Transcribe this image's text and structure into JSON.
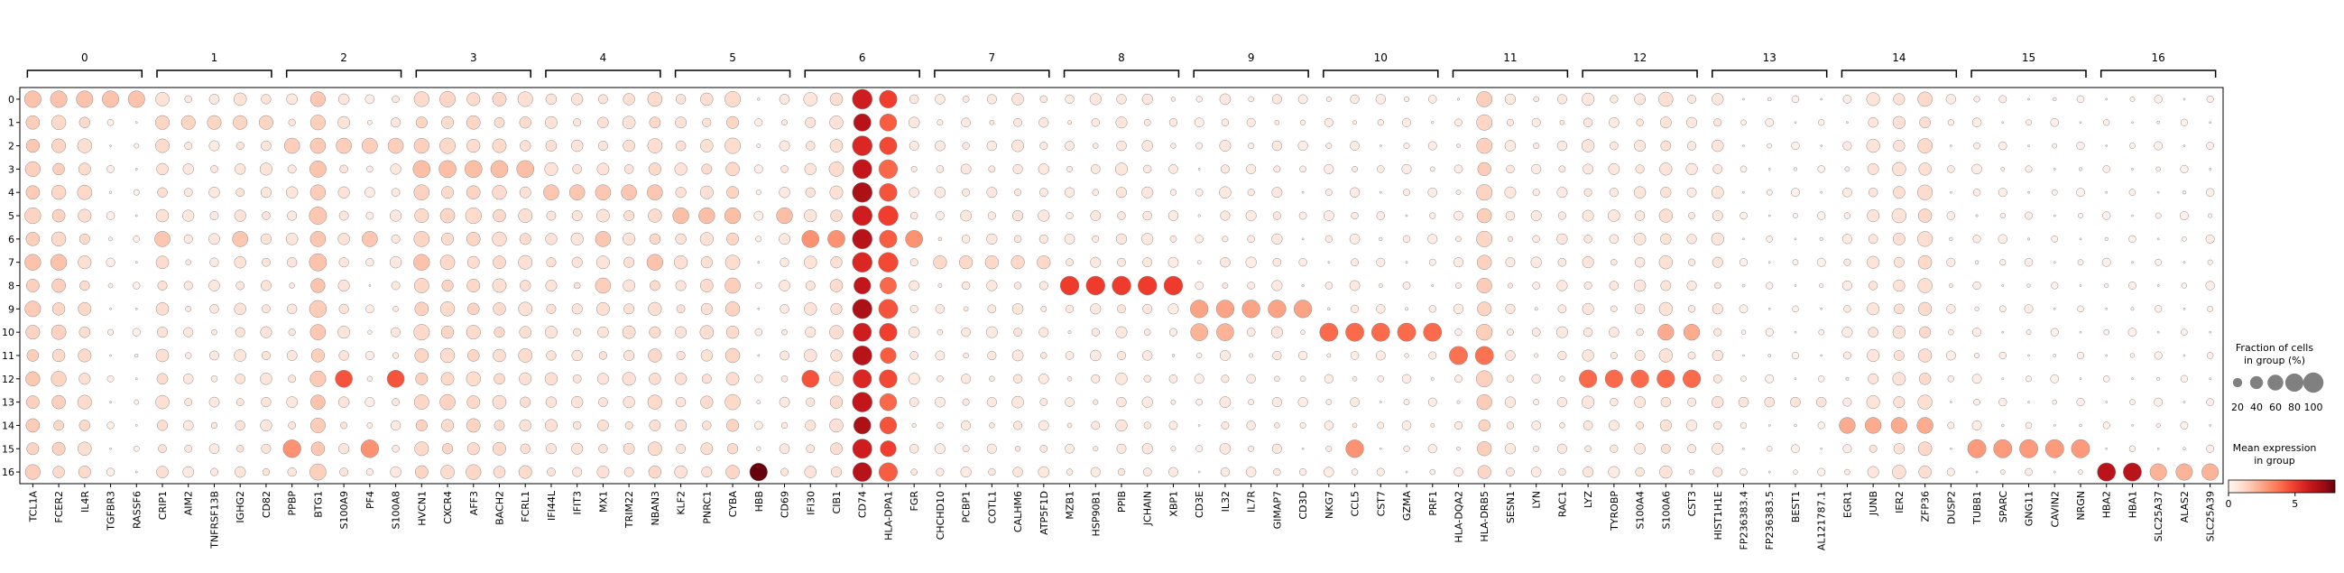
{
  "chart_data": {
    "type": "dotplot",
    "group_labels": [
      "0",
      "1",
      "2",
      "3",
      "4",
      "5",
      "6",
      "7",
      "8",
      "9",
      "10",
      "11",
      "12",
      "13",
      "14",
      "15",
      "16"
    ],
    "rows": [
      "0",
      "1",
      "2",
      "3",
      "4",
      "5",
      "6",
      "7",
      "8",
      "9",
      "10",
      "11",
      "12",
      "13",
      "14",
      "15",
      "16"
    ],
    "genes": [
      "TCL1A",
      "FCER2",
      "IL4R",
      "TGFBR3",
      "RASSF6",
      "CRIP1",
      "AIM2",
      "TNFRSF13B",
      "IGHG2",
      "CD82",
      "PPBP",
      "BTG1",
      "S100A9",
      "PF4",
      "S100A8",
      "HVCN1",
      "CXCR4",
      "AFF3",
      "BACH2",
      "FCRL1",
      "IFI44L",
      "IFIT3",
      "MX1",
      "TRIM22",
      "NBAN3",
      "KLF2",
      "PNRC1",
      "CYBA",
      "HBB",
      "CD69",
      "IFI30",
      "CIB1",
      "CD74",
      "HLA-DPA1",
      "FGR",
      "CHCHD10",
      "PCBP1",
      "COTL1",
      "CALHM6",
      "ATP5F1D",
      "MZB1",
      "HSP90B1",
      "PPIB",
      "JCHAIN",
      "XBP1",
      "CD3E",
      "IL32",
      "IL7R",
      "GIMAP7",
      "CD3D",
      "NKG7",
      "CCL5",
      "CST7",
      "GZMA",
      "PRF1",
      "HLA-DQA2",
      "HLA-DRB5",
      "SESN1",
      "LYN",
      "RAC1",
      "LYZ",
      "TYROBP",
      "S100A4",
      "S100A6",
      "CST3",
      "HIST1H1E",
      "FP236383.4",
      "FP236383.5",
      "BEST1",
      "AL121787.1",
      "EGR1",
      "JUNB",
      "IER2",
      "ZFP36",
      "DUSP2",
      "TUBB1",
      "SPARC",
      "GNG11",
      "CAVIN2",
      "NRGN",
      "HBA2",
      "HBA1",
      "SLC25A37",
      "ALAS2",
      "SLC25A39"
    ],
    "legend_size": {
      "title": "Fraction of cells\nin group (%)",
      "values": [
        20,
        40,
        60,
        80,
        100
      ],
      "labels": [
        "20",
        "40",
        "60",
        "80",
        "100"
      ]
    },
    "legend_color": {
      "title": "Mean expression\nin group",
      "range": [
        0,
        8
      ],
      "ticks": [
        0,
        5
      ],
      "tick_labels": [
        "0",
        "5"
      ],
      "colormap": "Reds"
    },
    "base_gene_fraction": [
      0.5,
      0.45,
      0.38,
      0.06,
      0.03,
      0.33,
      0.18,
      0.2,
      0.25,
      0.25,
      0.22,
      0.6,
      0.28,
      0.12,
      0.2,
      0.5,
      0.45,
      0.45,
      0.4,
      0.38,
      0.3,
      0.25,
      0.3,
      0.32,
      0.4,
      0.3,
      0.35,
      0.45,
      0.08,
      0.2,
      0.3,
      0.4,
      0.95,
      0.8,
      0.2,
      0.15,
      0.18,
      0.2,
      0.22,
      0.18,
      0.15,
      0.18,
      0.25,
      0.2,
      0.15,
      0.1,
      0.2,
      0.15,
      0.2,
      0.1,
      0.12,
      0.15,
      0.1,
      0.1,
      0.1,
      0.12,
      0.55,
      0.18,
      0.15,
      0.2,
      0.25,
      0.2,
      0.25,
      0.35,
      0.2,
      0.25,
      0.05,
      0.05,
      0.05,
      0.05,
      0.15,
      0.3,
      0.35,
      0.45,
      0.1,
      0.12,
      0.08,
      0.06,
      0.05,
      0.05,
      0.05,
      0.05,
      0.05,
      0.05,
      0.08
    ],
    "base_gene_expression": [
      1.5,
      1.3,
      1.1,
      0.3,
      0.2,
      1.0,
      0.6,
      0.6,
      0.8,
      0.8,
      0.7,
      1.6,
      0.8,
      0.4,
      0.6,
      1.3,
      1.2,
      1.2,
      1.1,
      1.0,
      0.9,
      0.8,
      0.9,
      0.9,
      1.1,
      0.9,
      1.0,
      1.2,
      0.3,
      0.6,
      0.8,
      1.0,
      6.2,
      4.5,
      0.6,
      0.5,
      0.6,
      0.6,
      0.7,
      0.6,
      0.5,
      0.6,
      0.7,
      0.6,
      0.5,
      0.3,
      0.6,
      0.5,
      0.6,
      0.4,
      0.4,
      0.5,
      0.4,
      0.4,
      0.4,
      0.4,
      1.4,
      0.6,
      0.5,
      0.6,
      0.7,
      0.6,
      0.7,
      0.9,
      0.6,
      0.7,
      0.2,
      0.2,
      0.2,
      0.2,
      0.5,
      0.8,
      0.9,
      1.1,
      0.4,
      0.4,
      0.3,
      0.3,
      0.2,
      0.2,
      0.2,
      0.2,
      0.2,
      0.2,
      0.3
    ],
    "row_fraction_scale": [
      1.15,
      0.9,
      1.1,
      1.05,
      1.1,
      1.15,
      1.05,
      1.1,
      0.9,
      1.0,
      1.0,
      0.95,
      1.0,
      1.05,
      0.85,
      0.9,
      1.0
    ],
    "highlights": [
      {
        "rows": [
          0
        ],
        "genes": [
          0,
          1,
          2,
          3,
          4
        ],
        "fraction": 0.7,
        "expression": 1.8
      },
      {
        "rows": [
          1
        ],
        "genes": [
          5,
          6,
          7,
          8,
          9
        ],
        "fraction": 0.5,
        "expression": 1.3
      },
      {
        "rows": [
          2
        ],
        "genes": [
          10,
          11,
          12,
          13,
          14
        ],
        "fraction": 0.6,
        "expression": 1.5
      },
      {
        "rows": [
          3
        ],
        "genes": [
          15,
          16,
          17,
          18,
          19
        ],
        "fraction": 0.75,
        "expression": 1.9
      },
      {
        "rows": [
          4
        ],
        "genes": [
          20,
          21,
          22,
          23,
          24
        ],
        "fraction": 0.6,
        "expression": 1.7
      },
      {
        "rows": [
          5
        ],
        "genes": [
          25,
          26,
          27,
          29
        ],
        "fraction": 0.65,
        "expression": 1.9
      },
      {
        "rows": [
          6
        ],
        "genes": [
          30,
          31,
          34
        ],
        "fraction": 0.75,
        "expression": 3.0
      },
      {
        "rows": [
          6
        ],
        "genes": [
          5,
          8,
          11,
          13,
          22
        ],
        "fraction": 0.6,
        "expression": 1.7
      },
      {
        "rows": [
          7
        ],
        "genes": [
          35,
          36,
          37,
          38,
          39
        ],
        "fraction": 0.45,
        "expression": 1.2
      },
      {
        "rows": [
          7
        ],
        "genes": [
          0,
          1,
          11,
          15,
          24
        ],
        "fraction": 0.65,
        "expression": 1.8
      },
      {
        "rows": [
          8
        ],
        "genes": [
          40,
          41,
          42,
          43,
          44
        ],
        "fraction": 0.9,
        "expression": 5.0
      },
      {
        "rows": [
          8
        ],
        "genes": [
          22,
          27
        ],
        "fraction": 0.6,
        "expression": 1.5
      },
      {
        "rows": [
          9
        ],
        "genes": [
          45,
          46,
          47,
          48,
          49
        ],
        "fraction": 0.8,
        "expression": 2.6
      },
      {
        "rows": [
          10
        ],
        "genes": [
          45,
          46
        ],
        "fraction": 0.75,
        "expression": 2.2
      },
      {
        "rows": [
          10
        ],
        "genes": [
          50,
          51,
          52,
          53,
          54
        ],
        "fraction": 0.85,
        "expression": 4.0
      },
      {
        "rows": [
          10
        ],
        "genes": [
          63,
          64
        ],
        "fraction": 0.65,
        "expression": 2.4
      },
      {
        "rows": [
          11
        ],
        "genes": [
          55,
          56
        ],
        "fraction": 0.85,
        "expression": 3.8
      },
      {
        "rows": [
          12
        ],
        "genes": [
          60,
          61,
          62,
          63,
          64
        ],
        "fraction": 0.8,
        "expression": 4.0
      },
      {
        "rows": [
          12
        ],
        "genes": [
          12,
          14,
          30
        ],
        "fraction": 0.75,
        "expression": 4.5
      },
      {
        "rows": [
          13
        ],
        "genes": [
          65,
          66,
          67,
          68,
          69
        ],
        "fraction": 0.25,
        "expression": 0.8
      },
      {
        "rows": [
          14
        ],
        "genes": [
          70,
          71,
          72,
          73
        ],
        "fraction": 0.65,
        "expression": 2.4
      },
      {
        "rows": [
          15
        ],
        "genes": [
          75,
          76,
          77,
          78,
          79
        ],
        "fraction": 0.85,
        "expression": 2.8
      },
      {
        "rows": [
          15
        ],
        "genes": [
          10,
          13,
          51
        ],
        "fraction": 0.8,
        "expression": 3.0
      },
      {
        "rows": [
          16
        ],
        "genes": [
          80,
          81
        ],
        "fraction": 0.85,
        "expression": 6.5
      },
      {
        "rows": [
          16
        ],
        "genes": [
          82,
          83,
          84
        ],
        "fraction": 0.7,
        "expression": 2.2
      },
      {
        "rows": [
          16
        ],
        "genes": [
          28
        ],
        "fraction": 0.8,
        "expression": 8.0
      },
      {
        "rows": [
          16
        ],
        "genes": [
          32
        ],
        "fraction": 0.85,
        "expression": 4.8
      }
    ]
  }
}
